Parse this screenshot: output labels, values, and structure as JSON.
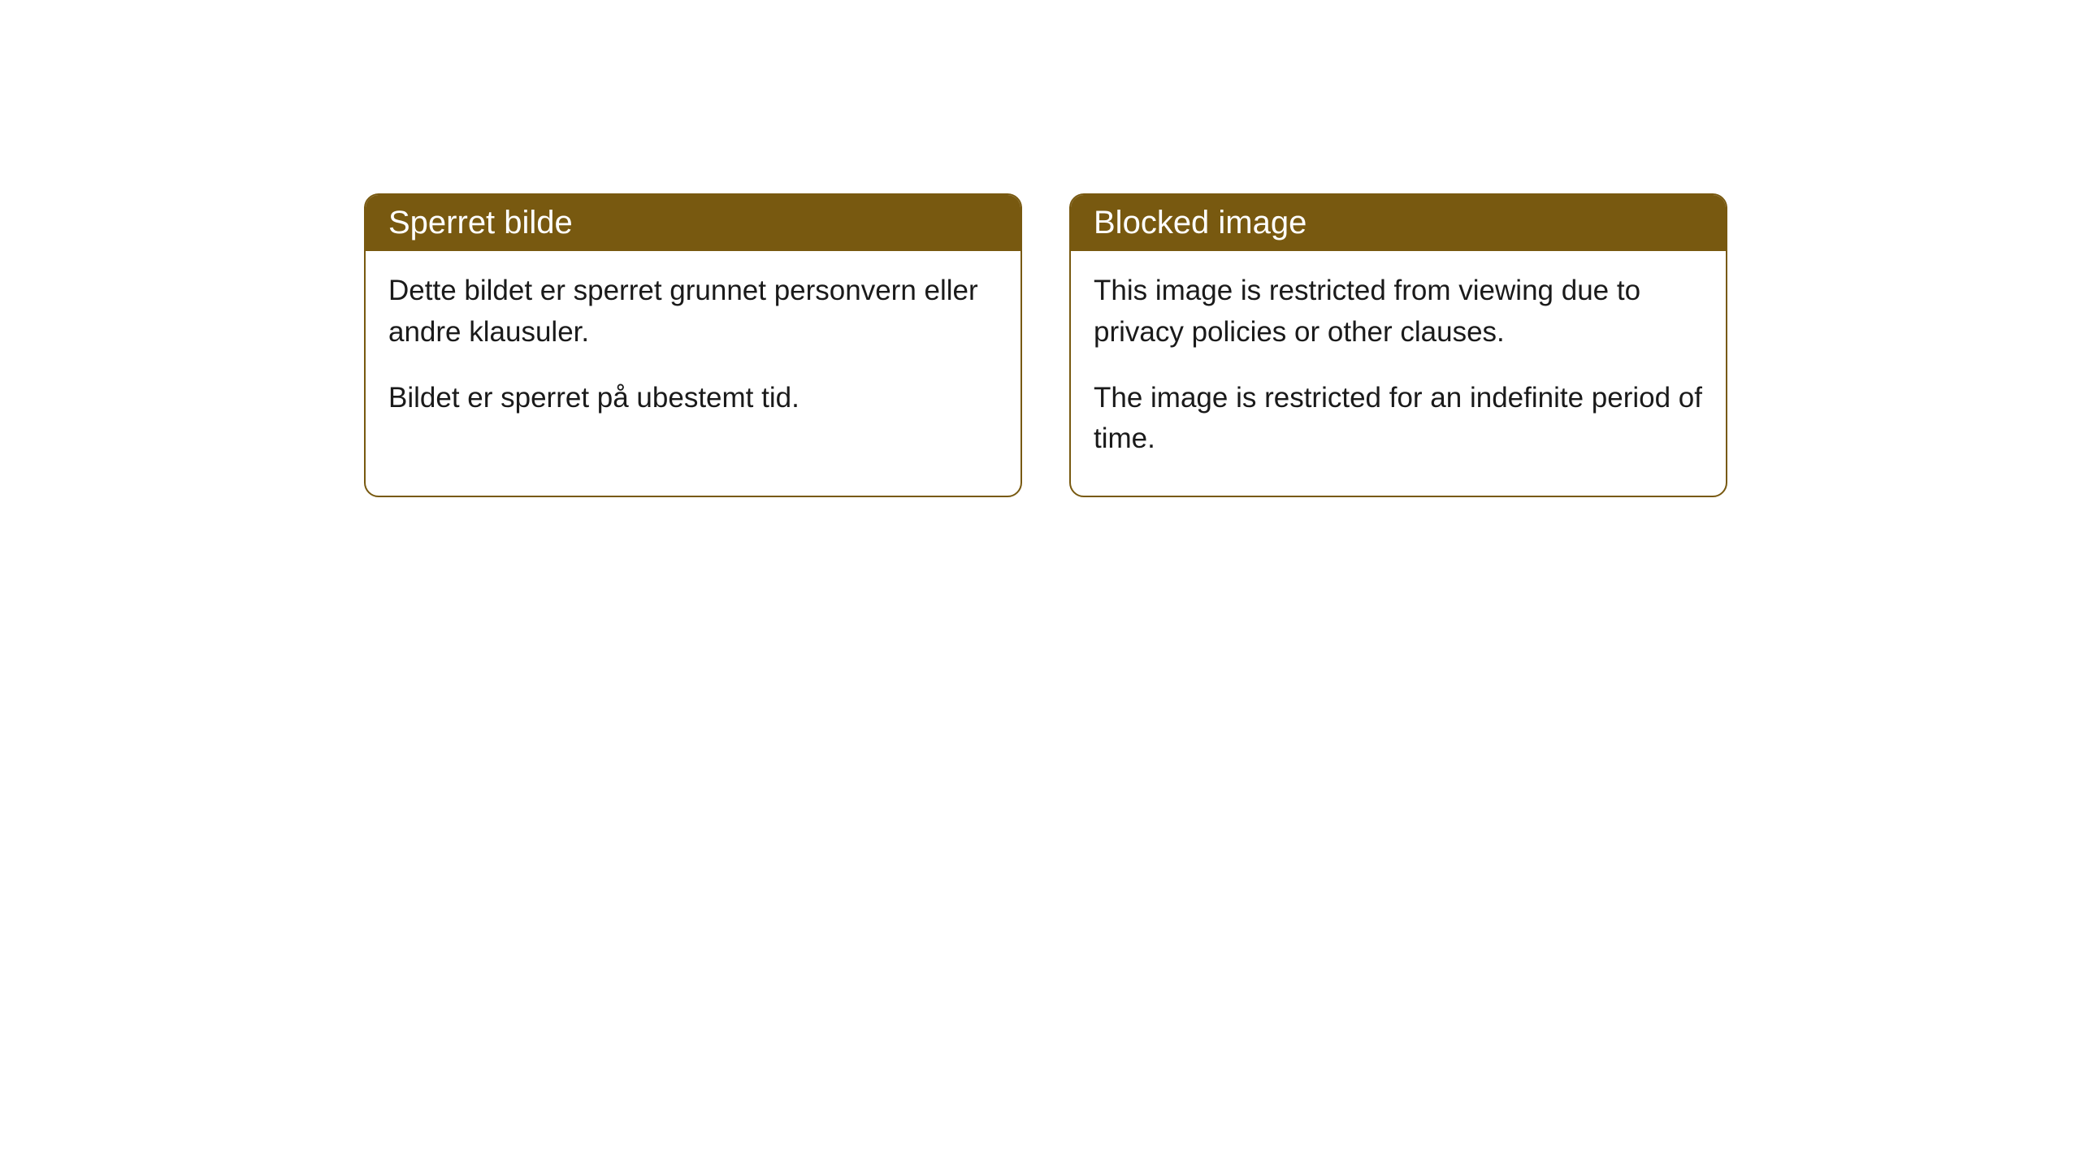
{
  "cards": [
    {
      "title": "Sperret bilde",
      "paragraph1": "Dette bildet er sperret grunnet personvern eller andre klausuler.",
      "paragraph2": "Bildet er sperret på ubestemt tid."
    },
    {
      "title": "Blocked image",
      "paragraph1": "This image is restricted from viewing due to privacy policies or other clauses.",
      "paragraph2": "The image is restricted for an indefinite period of time."
    }
  ],
  "style": {
    "header_background": "#785910",
    "header_text_color": "#ffffff",
    "border_color": "#785910",
    "body_background": "#ffffff",
    "body_text_color": "#1a1a1a",
    "border_radius": 18,
    "title_fontsize": 40,
    "body_fontsize": 35
  }
}
